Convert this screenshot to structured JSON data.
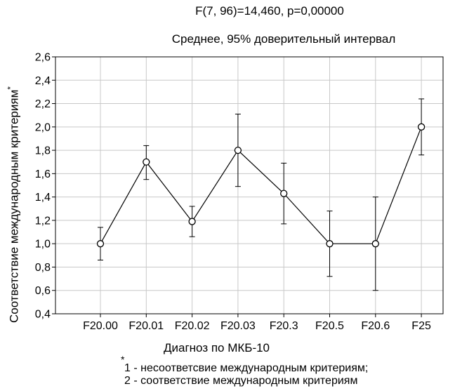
{
  "chart_data": {
    "type": "line",
    "title": "F(7, 96)=14,460, p=0,00000",
    "subtitle": "Среднее, 95% доверительный интервал",
    "xlabel": "Диагноз по МКБ-10",
    "ylabel": "Соответствие международным критериям",
    "ylabel_marker": "*",
    "categories": [
      "F20.00",
      "F20.01",
      "F20.02",
      "F20.03",
      "F20.3",
      "F20.5",
      "F20.6",
      "F25"
    ],
    "series": [
      {
        "values": [
          1.0,
          1.7,
          1.19,
          1.8,
          1.43,
          1.0,
          1.0,
          2.0
        ],
        "ci_low": [
          0.86,
          1.55,
          1.06,
          1.49,
          1.17,
          0.72,
          0.6,
          1.76
        ],
        "ci_high": [
          1.14,
          1.84,
          1.32,
          2.11,
          1.69,
          1.28,
          1.4,
          2.24
        ]
      }
    ],
    "ylim": [
      0.4,
      2.6
    ],
    "yticks": [
      "0,4",
      "0,6",
      "0,8",
      "1,0",
      "1,2",
      "1,4",
      "1,6",
      "1,8",
      "2,0",
      "2,2",
      "2,4",
      "2,6"
    ],
    "grid": true,
    "footnote_marker": "*",
    "footnote_lines": [
      "1 - несоответсвие международным критериям;",
      "2 - соответствие международным критериям"
    ],
    "colors": {
      "line": "#000000",
      "grid": "#c8c8c8",
      "marker_fill": "#ffffff"
    }
  }
}
